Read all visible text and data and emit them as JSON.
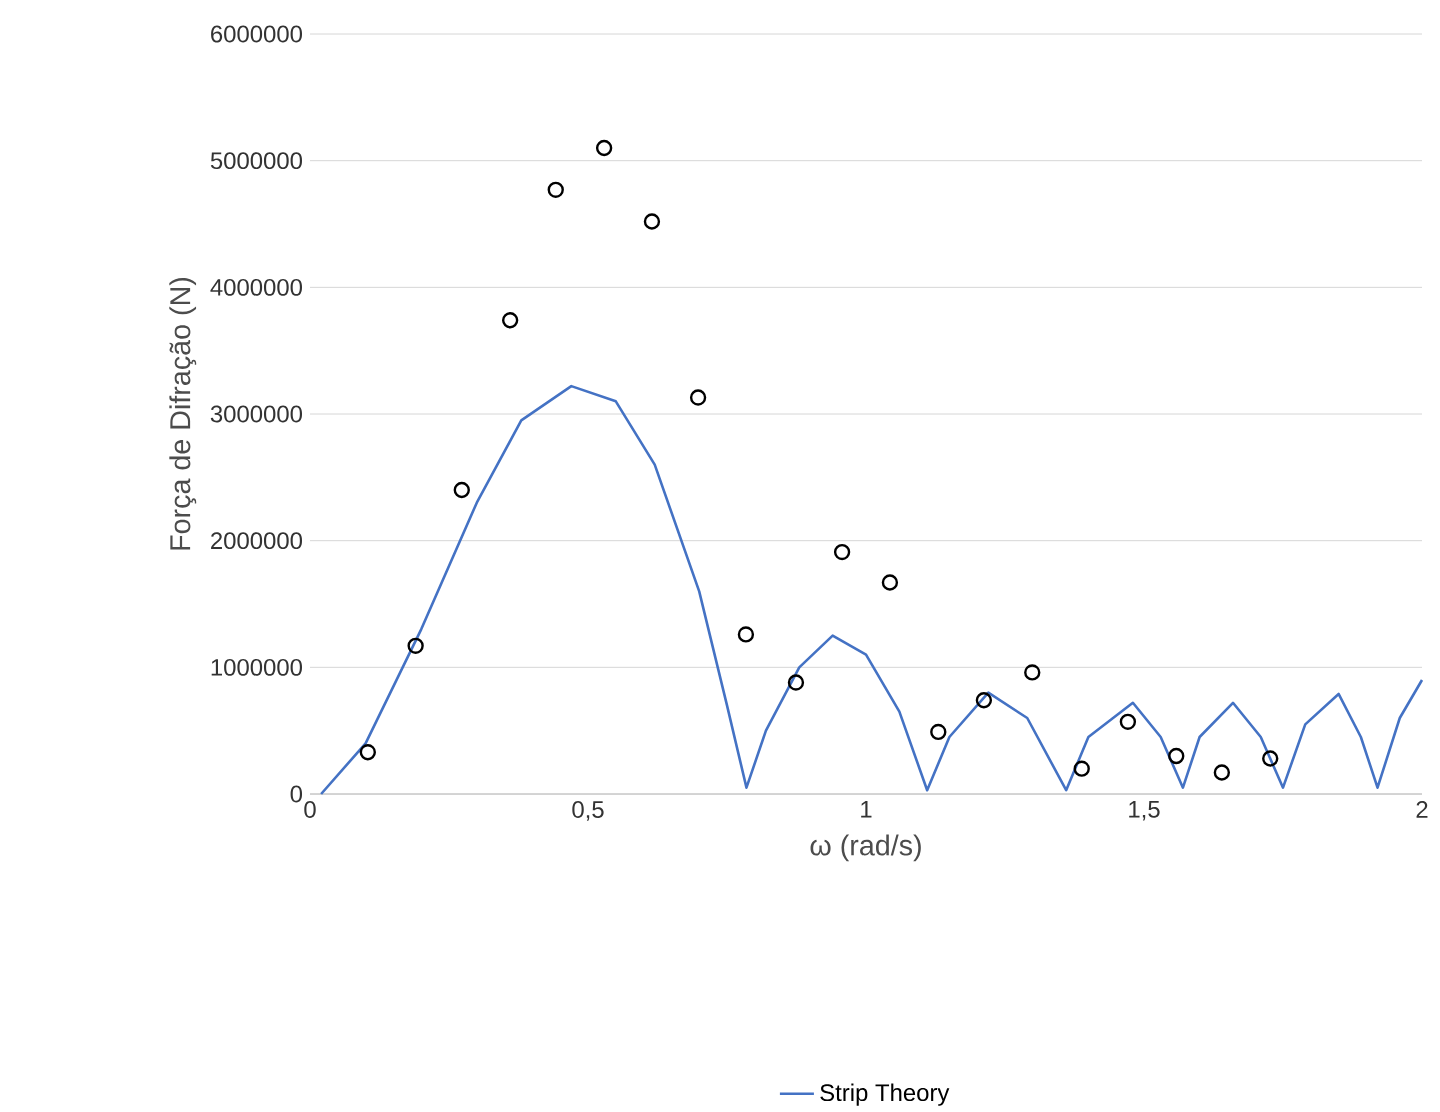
{
  "chart_data": {
    "type": "scatter",
    "xlabel": "ω (rad/s)",
    "ylabel": "Força de Difração (N)",
    "xlim": [
      0,
      2
    ],
    "ylim": [
      0,
      6000000
    ],
    "xticks": [
      0,
      {
        "value": 0.5,
        "label": "0,5"
      },
      1,
      {
        "value": 1.5,
        "label": "1,5"
      },
      2
    ],
    "yticks": [
      0,
      1000000,
      2000000,
      3000000,
      4000000,
      5000000,
      6000000
    ],
    "grid": "y",
    "legend": "bottom",
    "series": [
      {
        "marker": "circle",
        "color": "#000000",
        "x": [
          0.104,
          0.19,
          0.273,
          0.36,
          0.442,
          0.529,
          0.615,
          0.698,
          0.784,
          0.874,
          0.957,
          1.043,
          1.13,
          1.212,
          1.299,
          1.388,
          1.471,
          1.558,
          1.64,
          1.727
        ],
        "values": [
          330000,
          1170000,
          2400000,
          3740000,
          4770000,
          5100000,
          4520000,
          3130000,
          1260000,
          880000,
          1910000,
          1670000,
          490000,
          740000,
          960000,
          200000,
          570000,
          300000,
          170000,
          280000
        ]
      },
      {
        "type": "line",
        "name": "Strip Theory",
        "color": "#4472c4",
        "x": [
          0.02,
          0.1,
          0.2,
          0.3,
          0.38,
          0.47,
          0.55,
          0.62,
          0.7,
          0.75,
          0.785,
          0.82,
          0.88,
          0.94,
          1.0,
          1.06,
          1.11,
          1.15,
          1.22,
          1.29,
          1.36,
          1.4,
          1.48,
          1.53,
          1.57,
          1.6,
          1.66,
          1.71,
          1.75,
          1.79,
          1.85,
          1.89,
          1.92,
          1.96,
          2.0
        ],
        "values": [
          0,
          400000,
          1300000,
          2300000,
          2950000,
          3220000,
          3100000,
          2600000,
          1600000,
          700000,
          50000,
          500000,
          1000000,
          1250000,
          1100000,
          650000,
          30000,
          450000,
          800000,
          600000,
          30000,
          450000,
          720000,
          450000,
          50000,
          450000,
          720000,
          450000,
          50000,
          550000,
          790000,
          450000,
          50000,
          600000,
          900000
        ]
      }
    ]
  }
}
